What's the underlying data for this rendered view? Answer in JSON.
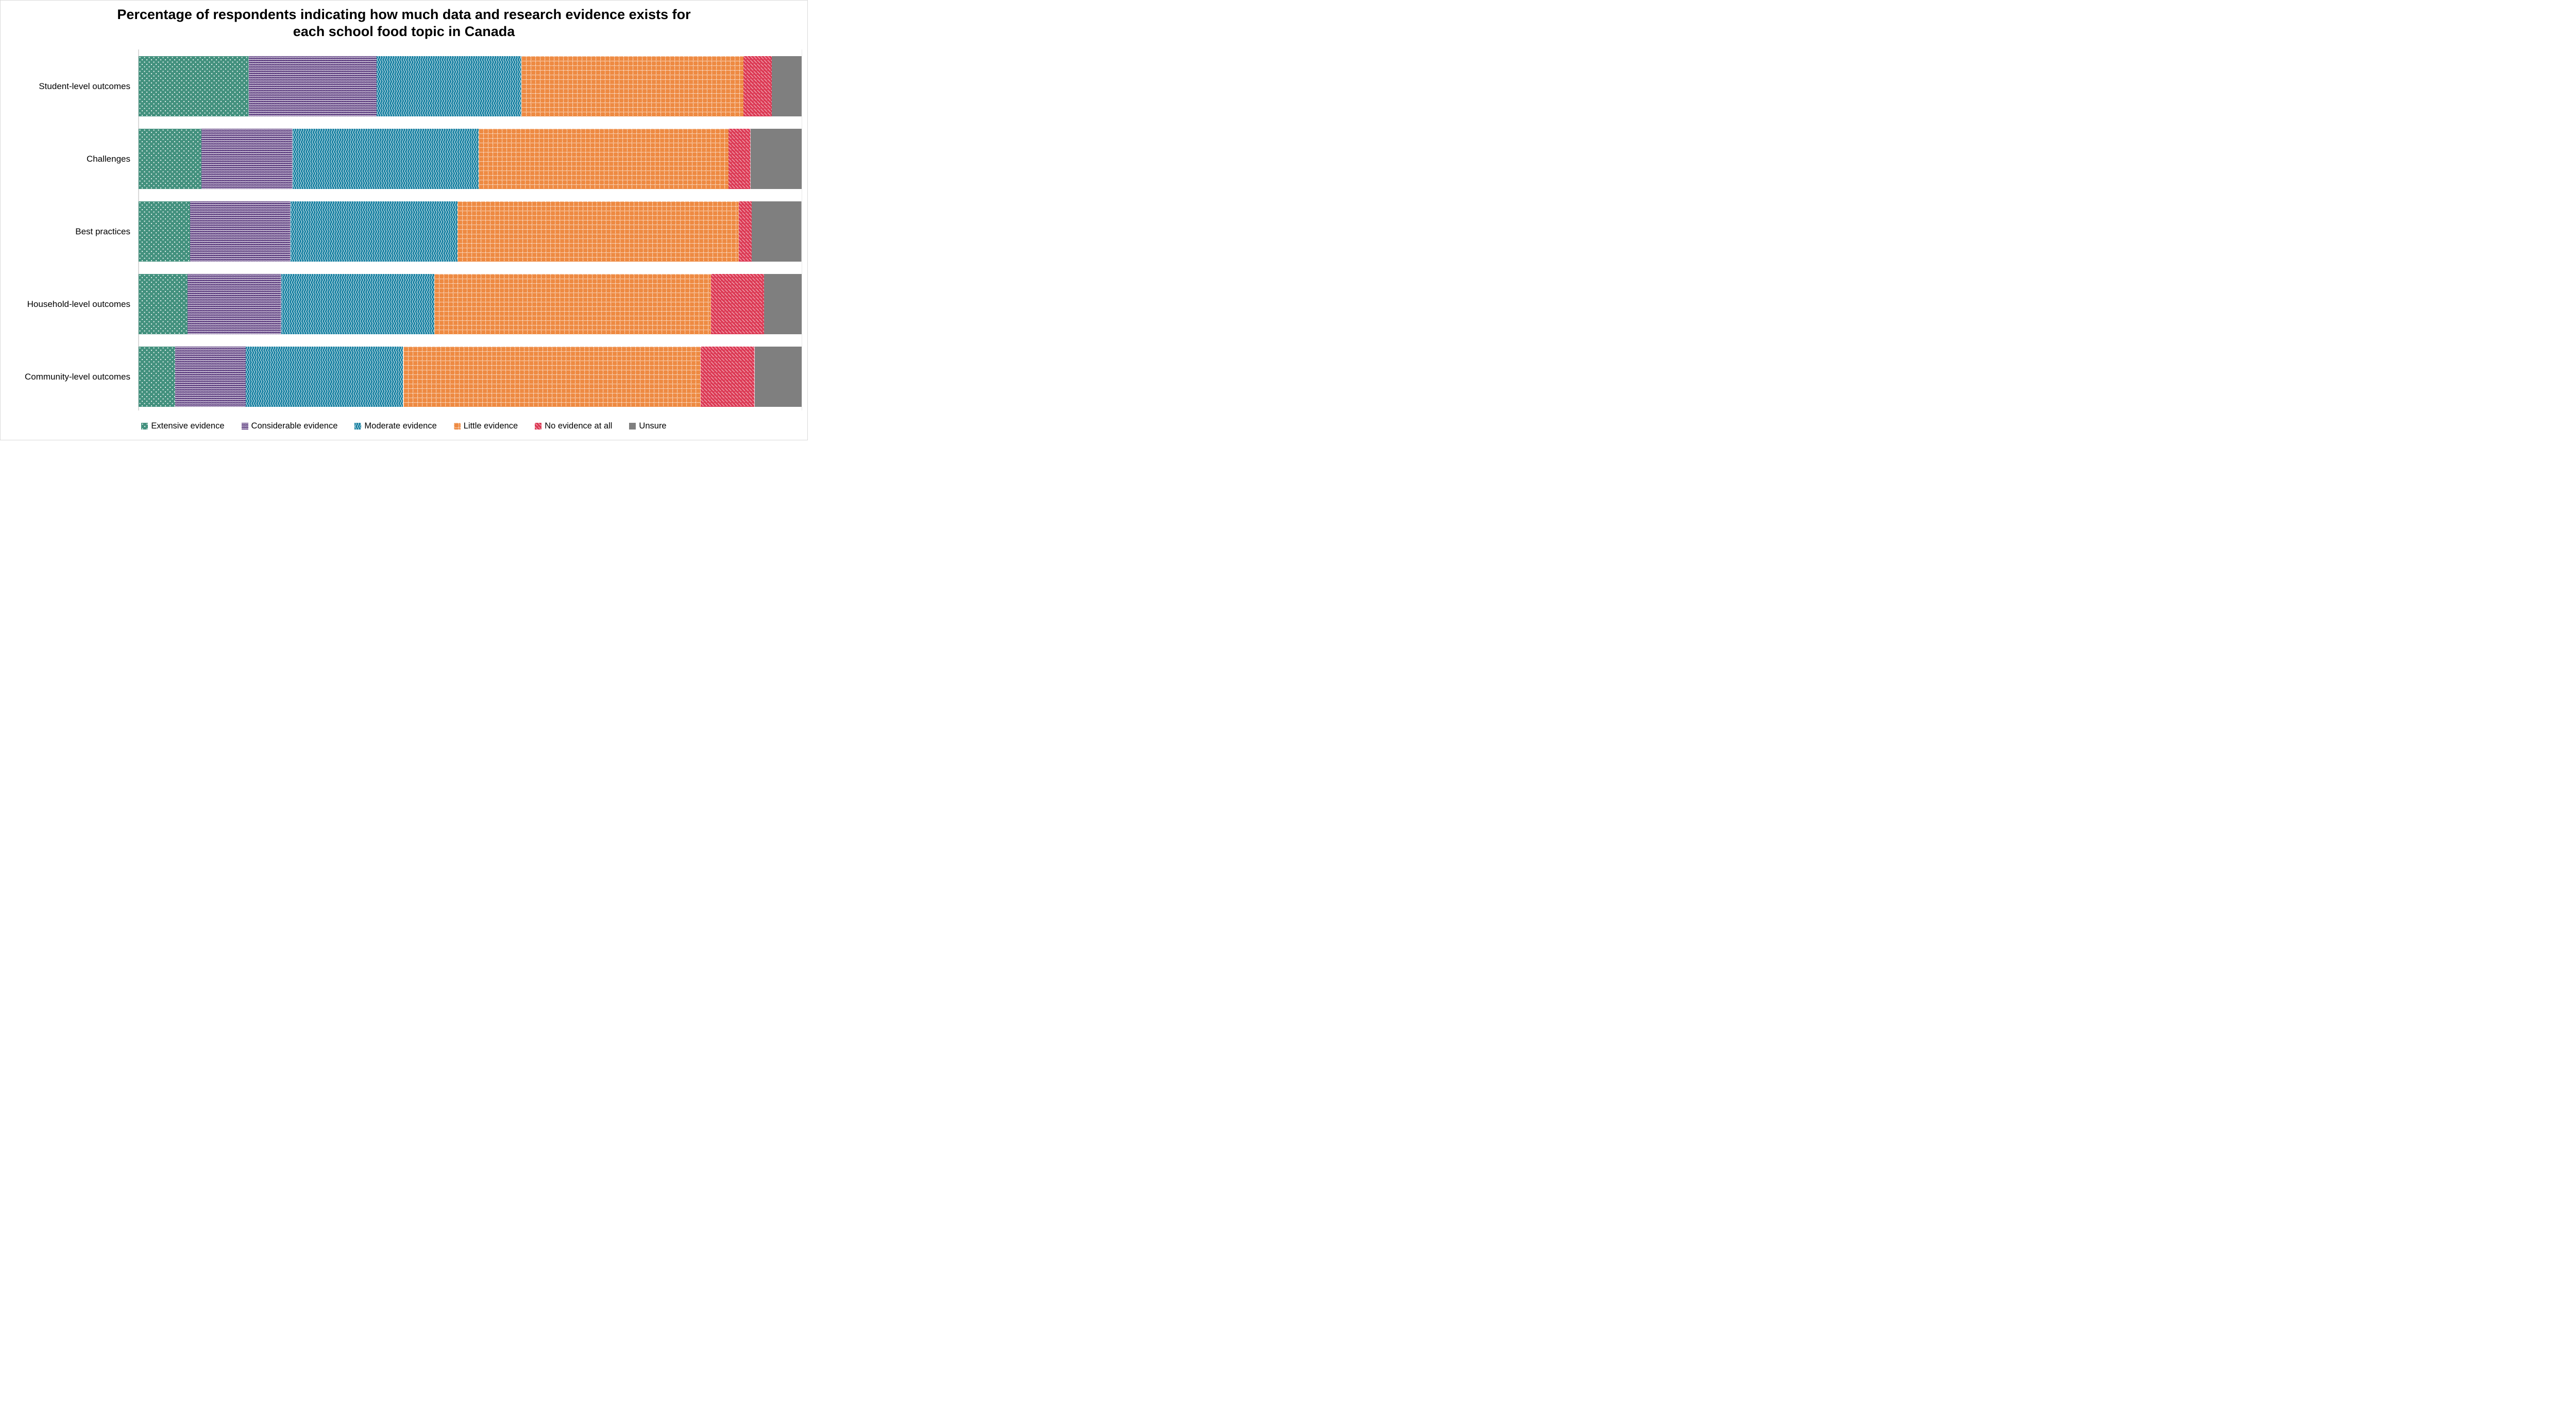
{
  "title": {
    "line1": "Percentage of respondents indicating how much data and research evidence exists for",
    "line2": "each school food topic in Canada"
  },
  "chart_data": {
    "type": "bar",
    "subtype": "horizontal-stacked-100pct",
    "unit": "percent",
    "title": "Percentage of respondents indicating how much data and research evidence exists for each school food topic in Canada",
    "categories": [
      "Student-level outcomes",
      "Challenges",
      "Best practices",
      "Household-level outcomes",
      "Community-level outcomes"
    ],
    "series": [
      {
        "name": "Extensive evidence",
        "color": "#43917E",
        "pattern": "dots",
        "values": [
          16.6,
          9.5,
          7.8,
          7.4,
          5.5
        ]
      },
      {
        "name": "Considerable evidence",
        "color": "#4D2A73",
        "pattern": "zigzag",
        "values": [
          19.3,
          13.7,
          15.1,
          14.1,
          10.7
        ]
      },
      {
        "name": "Moderate evidence",
        "color": "#1780A1",
        "pattern": "waves",
        "values": [
          21.8,
          28.1,
          25.2,
          23.1,
          23.7
        ]
      },
      {
        "name": "Little evidence",
        "color": "#EE8A42",
        "pattern": "dotted-grid",
        "values": [
          33.5,
          37.7,
          42.4,
          41.7,
          44.9
        ]
      },
      {
        "name": "No evidence at all",
        "color": "#DC3954",
        "pattern": "diagonal-dashes",
        "values": [
          4.3,
          3.3,
          2.0,
          8.0,
          8.1
        ]
      },
      {
        "name": "Unsure",
        "color": "#7F7F7F",
        "pattern": "solid",
        "values": [
          4.5,
          7.7,
          7.5,
          5.7,
          7.1
        ]
      }
    ],
    "xlim": [
      0,
      100
    ],
    "x_axis_labels_visible": false,
    "gridlines": false,
    "axis_line_color": "#D9D9D9",
    "legend_position": "bottom"
  }
}
